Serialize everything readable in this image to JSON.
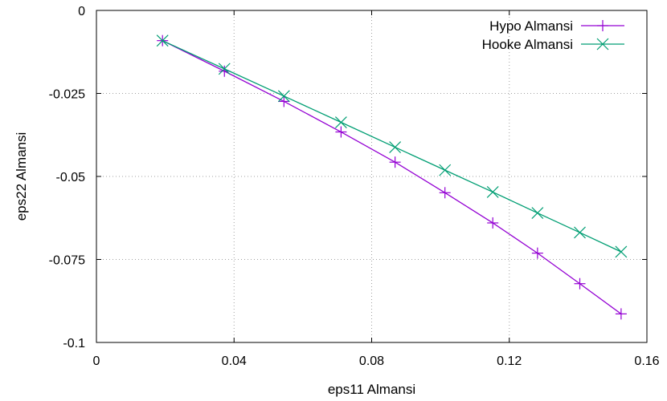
{
  "chart_data": {
    "type": "line",
    "title": "",
    "xlabel": "eps11 Almansi",
    "ylabel": "eps22 Almansi",
    "xlim": [
      0,
      0.16
    ],
    "ylim": [
      -0.1,
      0
    ],
    "x_ticks": [
      0,
      0.04,
      0.08,
      0.12,
      0.16
    ],
    "x_tick_labels": [
      "0",
      "0.04",
      "0.08",
      "0.12",
      "0.16"
    ],
    "y_ticks": [
      0,
      -0.025,
      -0.05,
      -0.075,
      -0.1
    ],
    "y_tick_labels": [
      "0",
      "-0.025",
      "-0.05",
      "-0.075",
      "-0.1"
    ],
    "grid": true,
    "legend_position": "top-right",
    "series": [
      {
        "name": "Hypo Almansi",
        "color": "#9400d3",
        "marker": "plus",
        "x": [
          0.0192,
          0.0372,
          0.0545,
          0.0711,
          0.0868,
          0.1013,
          0.1152,
          0.1282,
          0.1405,
          0.1525
        ],
        "y": [
          -0.0091,
          -0.0183,
          -0.0274,
          -0.0366,
          -0.0457,
          -0.0549,
          -0.064,
          -0.0731,
          -0.0823,
          -0.0914
        ]
      },
      {
        "name": "Hooke Almansi",
        "color": "#009e73",
        "marker": "cross",
        "x": [
          0.0192,
          0.0372,
          0.0545,
          0.0711,
          0.0868,
          0.1013,
          0.1152,
          0.1282,
          0.1405,
          0.1525
        ],
        "y": [
          -0.0091,
          -0.0176,
          -0.0258,
          -0.0337,
          -0.0412,
          -0.0481,
          -0.0547,
          -0.061,
          -0.0669,
          -0.0727
        ]
      }
    ]
  }
}
